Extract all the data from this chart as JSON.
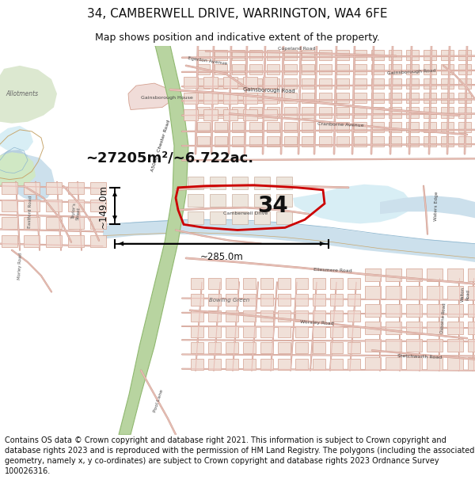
{
  "title": "34, CAMBERWELL DRIVE, WARRINGTON, WA4 6FE",
  "subtitle": "Map shows position and indicative extent of the property.",
  "area_label": "~27205m²/~6.722ac.",
  "plot_number": "34",
  "dim_width": "~285.0m",
  "dim_height": "~149.0m",
  "footer": "Contains OS data © Crown copyright and database right 2021. This information is subject to Crown copyright and database rights 2023 and is reproduced with the permission of HM Land Registry. The polygons (including the associated geometry, namely x, y co-ordinates) are subject to Crown copyright and database rights 2023 Ordnance Survey 100026316.",
  "bg_color": "#f4f0ea",
  "water_color": "#cce0ec",
  "water_color2": "#d8eef5",
  "green_allot": "#dce8d0",
  "green_strip": "#b8d4a0",
  "green_strip2": "#c8dca8",
  "road_fill": "#e8c8c0",
  "road_stroke": "#d4a090",
  "bld_fill": "#f0e8e0",
  "bld_stroke": "#e0b8a8",
  "boundary_color": "#cc0000",
  "title_fs": 11,
  "subtitle_fs": 9,
  "footer_fs": 7.0,
  "label_fs": 4.5,
  "area_fs": 13,
  "dim_fs": 8.5,
  "num_fs": 20
}
